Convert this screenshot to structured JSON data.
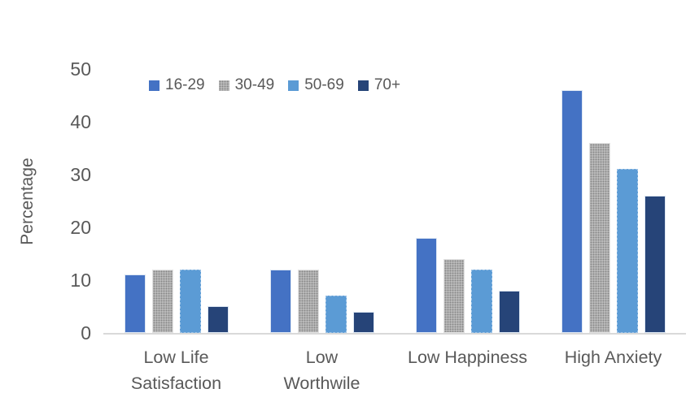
{
  "chart_data": {
    "type": "bar",
    "title": "",
    "xlabel": "",
    "ylabel": "Percentage",
    "ylim": [
      0,
      50
    ],
    "yticks": [
      0,
      10,
      20,
      30,
      40,
      50
    ],
    "grid": false,
    "legend_position": "top-left-inside",
    "categories": [
      "Low Life Satisfaction",
      "Low Worthwile",
      "Low Happiness",
      "High Anxiety"
    ],
    "category_lines": [
      [
        "Low Life",
        "Satisfaction"
      ],
      [
        "Low",
        "Worthwile"
      ],
      [
        "Low Happiness"
      ],
      [
        "High Anxiety"
      ]
    ],
    "series": [
      {
        "name": "16-29",
        "color": "#4472C4",
        "pattern": false,
        "values": [
          11,
          12,
          18,
          46
        ]
      },
      {
        "name": "30-49",
        "color": "#C2C2C2",
        "pattern": true,
        "values": [
          12,
          12,
          14,
          36
        ]
      },
      {
        "name": "50-69",
        "color": "#5B9BD5",
        "pattern": false,
        "values": [
          12,
          7,
          12,
          31
        ]
      },
      {
        "name": "70+",
        "color": "#264478",
        "pattern": false,
        "values": [
          5,
          4,
          8,
          26
        ]
      }
    ],
    "colors": {
      "axis_line": "#d9d9d9",
      "text": "#595959",
      "background": "#ffffff"
    }
  }
}
